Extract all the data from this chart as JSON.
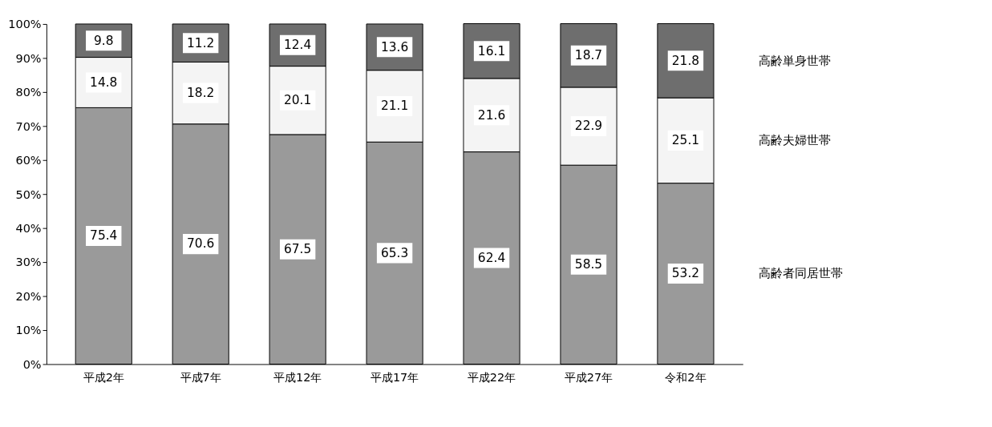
{
  "chart_data": {
    "type": "bar",
    "stacked": true,
    "categories": [
      "平成2年",
      "平成7年",
      "平成12年",
      "平成17年",
      "平成22年",
      "平成27年",
      "令和2年"
    ],
    "series": [
      {
        "name": "高齢者同居世帯",
        "color": "#9a9a9a",
        "values": [
          75.4,
          70.6,
          67.5,
          65.3,
          62.4,
          58.5,
          53.2
        ]
      },
      {
        "name": "高齢夫婦世帯",
        "color": "#f4f4f4",
        "values": [
          14.8,
          18.2,
          20.1,
          21.1,
          21.6,
          22.9,
          25.1
        ]
      },
      {
        "name": "高齢単身世帯",
        "color": "#6e6e6e",
        "values": [
          9.8,
          11.2,
          12.4,
          13.6,
          16.1,
          18.7,
          21.8
        ]
      }
    ],
    "ylim": [
      0,
      100
    ],
    "yticks": [
      {
        "value": 0,
        "label": "0%"
      },
      {
        "value": 10,
        "label": "10%"
      },
      {
        "value": 20,
        "label": "20%"
      },
      {
        "value": 30,
        "label": "30%"
      },
      {
        "value": 40,
        "label": "40%"
      },
      {
        "value": 50,
        "label": "50%"
      },
      {
        "value": 60,
        "label": "60%"
      },
      {
        "value": 70,
        "label": "70%"
      },
      {
        "value": 80,
        "label": "80%"
      },
      {
        "value": 90,
        "label": "90%"
      },
      {
        "value": 100,
        "label": "100%"
      }
    ],
    "grid": false,
    "data_labels": true
  }
}
